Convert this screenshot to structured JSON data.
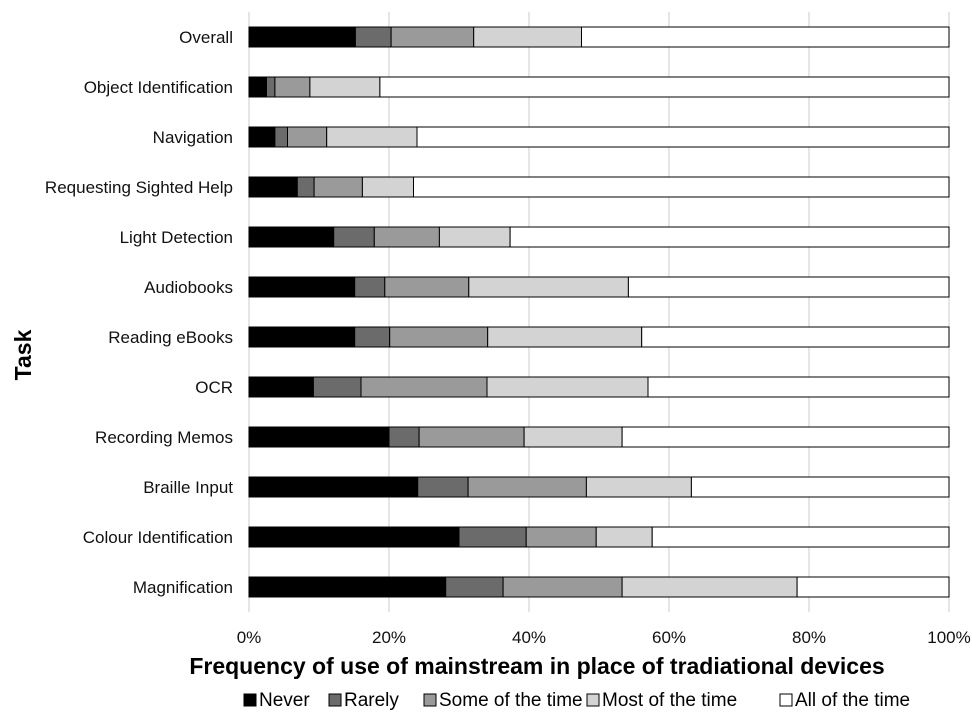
{
  "chart_data": {
    "type": "bar",
    "orientation": "horizontal",
    "stacked": "percent",
    "categories": [
      "Overall",
      "Object Identification",
      "Navigation",
      "Requesting Sighted Help",
      "Light Detection",
      "Audiobooks",
      "Reading eBooks",
      "OCR",
      "Recording Memos",
      "Braille Input",
      "Colour Identification",
      "Magnification"
    ],
    "series": [
      {
        "name": "Never",
        "color": "#000000",
        "values": [
          15.2,
          2.5,
          3.7,
          6.9,
          12.1,
          15.1,
          15.1,
          9.2,
          20.0,
          24.1,
          30.0,
          28.1
        ]
      },
      {
        "name": "Rarely",
        "color": "#6b6b6b",
        "values": [
          5.1,
          1.2,
          1.8,
          2.4,
          5.8,
          4.3,
          5.0,
          6.8,
          4.3,
          7.2,
          9.6,
          8.2
        ]
      },
      {
        "name": "Some of the time",
        "color": "#9a9a9a",
        "values": [
          11.8,
          5.0,
          5.6,
          6.9,
          9.3,
          12.0,
          14.0,
          18.0,
          15.0,
          16.9,
          10.0,
          17.0
        ]
      },
      {
        "name": "Most of the time",
        "color": "#d3d3d3",
        "values": [
          15.4,
          10.0,
          12.9,
          7.3,
          10.1,
          22.8,
          22.0,
          23.0,
          14.0,
          15.0,
          8.0,
          25.0
        ]
      },
      {
        "name": "All of the time",
        "color": "#ffffff",
        "values": [
          52.5,
          81.3,
          76.0,
          76.5,
          62.7,
          45.8,
          43.9,
          43.0,
          46.7,
          36.8,
          42.4,
          21.7
        ]
      }
    ],
    "xlim": [
      0,
      100
    ],
    "xticks": [
      "0%",
      "20%",
      "40%",
      "60%",
      "80%",
      "100%"
    ],
    "xlabel": "Frequency of use of mainstream in place of tradiational devices",
    "ylabel": "Task",
    "grid": "vertical",
    "legend": "bottom"
  }
}
